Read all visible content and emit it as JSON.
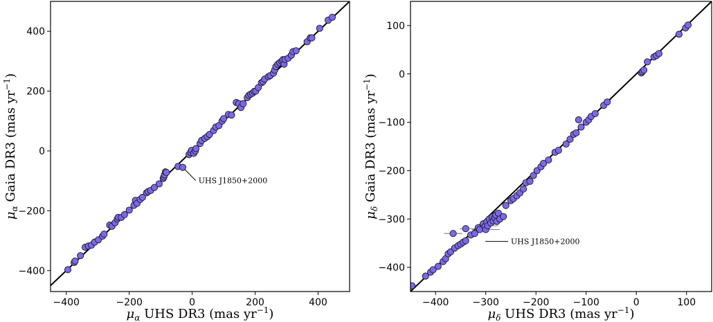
{
  "colors": {
    "marker": "#7b68ee",
    "edge": "#1a1a1a",
    "line": "#000000"
  },
  "chart_data": [
    {
      "type": "scatter",
      "id": "ra",
      "xlabel": {
        "sym": "μ",
        "sub": "α",
        "text": " UHS DR3 (mas yr",
        "sup": "−1",
        "end": ")"
      },
      "ylabel": {
        "sym": "μ",
        "sub": "α",
        "text": " Gaia DR3 (mas yr",
        "sup": "−1",
        "end": ")"
      },
      "xlim": [
        -450,
        500
      ],
      "ylim": [
        -470,
        500
      ],
      "xticks": [
        -400,
        -200,
        0,
        200,
        400
      ],
      "yticks": [
        -400,
        -200,
        0,
        200,
        400
      ],
      "xticklabels": [
        "−400",
        "−200",
        "0",
        "200",
        "400"
      ],
      "yticklabels": [
        "−400",
        "−200",
        "0",
        "200",
        "400"
      ],
      "line": {
        "x": [
          -450,
          500
        ],
        "y": [
          -450,
          500
        ]
      },
      "annotation": {
        "text": "UHS J1850+2000",
        "point": [
          -30,
          -55
        ],
        "text_at": [
          20,
          -108
        ]
      },
      "points": [
        [
          -395,
          -397
        ],
        [
          -375,
          -373
        ],
        [
          -372,
          -368
        ],
        [
          -355,
          -350
        ],
        [
          -340,
          -322
        ],
        [
          -330,
          -318
        ],
        [
          -320,
          -315
        ],
        [
          -310,
          -305
        ],
        [
          -298,
          -297
        ],
        [
          -285,
          -285
        ],
        [
          -280,
          -278
        ],
        [
          -262,
          -248
        ],
        [
          -255,
          -252
        ],
        [
          -245,
          -240
        ],
        [
          -238,
          -228
        ],
        [
          -235,
          -222
        ],
        [
          -225,
          -222
        ],
        [
          -215,
          -213
        ],
        [
          -200,
          -198
        ],
        [
          -185,
          -182
        ],
        [
          -180,
          -165
        ],
        [
          -175,
          -175
        ],
        [
          -165,
          -162
        ],
        [
          -158,
          -155
        ],
        [
          -145,
          -140
        ],
        [
          -140,
          -136
        ],
        [
          -132,
          -132
        ],
        [
          -120,
          -122
        ],
        [
          -105,
          -110
        ],
        [
          -92,
          -92
        ],
        [
          -90,
          -87
        ],
        [
          -88,
          -80
        ],
        [
          -85,
          -70
        ],
        [
          -82,
          -72
        ],
        [
          -45,
          -52
        ],
        [
          -30,
          -55
        ],
        [
          -10,
          -12
        ],
        [
          -5,
          -5
        ],
        [
          -2,
          2
        ],
        [
          5,
          -8
        ],
        [
          10,
          0
        ],
        [
          12,
          8
        ],
        [
          25,
          25
        ],
        [
          30,
          35
        ],
        [
          40,
          42
        ],
        [
          48,
          48
        ],
        [
          55,
          55
        ],
        [
          68,
          68
        ],
        [
          75,
          80
        ],
        [
          85,
          85
        ],
        [
          95,
          100
        ],
        [
          100,
          108
        ],
        [
          115,
          122
        ],
        [
          125,
          120
        ],
        [
          140,
          162
        ],
        [
          148,
          158
        ],
        [
          155,
          145
        ],
        [
          162,
          158
        ],
        [
          175,
          178
        ],
        [
          180,
          186
        ],
        [
          186,
          190
        ],
        [
          192,
          193
        ],
        [
          197,
          199
        ],
        [
          202,
          200
        ],
        [
          210,
          212
        ],
        [
          220,
          228
        ],
        [
          225,
          232
        ],
        [
          230,
          240
        ],
        [
          242,
          248
        ],
        [
          248,
          252
        ],
        [
          258,
          260
        ],
        [
          262,
          270
        ],
        [
          266,
          282
        ],
        [
          272,
          290
        ],
        [
          278,
          295
        ],
        [
          285,
          300
        ],
        [
          288,
          305
        ],
        [
          292,
          290
        ],
        [
          295,
          306
        ],
        [
          305,
          310
        ],
        [
          315,
          320
        ],
        [
          320,
          332
        ],
        [
          330,
          335
        ],
        [
          365,
          365
        ],
        [
          375,
          378
        ],
        [
          380,
          378
        ],
        [
          405,
          410
        ],
        [
          432,
          437
        ],
        [
          445,
          447
        ]
      ]
    },
    {
      "type": "scatter",
      "id": "dec",
      "xlabel": {
        "sym": "μ",
        "sub": "δ",
        "text": " UHS DR3 (mas yr",
        "sup": "−1",
        "end": ")"
      },
      "ylabel": {
        "sym": "μ",
        "sub": "δ",
        "text": " Gaia DR3 (mas yr",
        "sup": "−1",
        "end": ")"
      },
      "xlim": [
        -450,
        150
      ],
      "ylim": [
        -450,
        150
      ],
      "xticks": [
        -400,
        -300,
        -200,
        -100,
        0,
        100
      ],
      "yticks": [
        -400,
        -300,
        -200,
        -100,
        0,
        100
      ],
      "xticklabels": [
        "−400",
        "−300",
        "−200",
        "−100",
        "0",
        "100"
      ],
      "yticklabels": [
        "−400",
        "−300",
        "−200",
        "−100",
        "0",
        "100"
      ],
      "line": {
        "x": [
          -450,
          150
        ],
        "y": [
          -450,
          150
        ]
      },
      "annotation": {
        "text": "UHS J1850+2000",
        "point": [
          -305,
          -342
        ],
        "text_at": [
          -250,
          -352
        ]
      },
      "points": [
        [
          -447,
          -438
        ],
        [
          -420,
          -418
        ],
        [
          -410,
          -410
        ],
        [
          -405,
          -405
        ],
        [
          -395,
          -398
        ],
        [
          -385,
          -388
        ],
        [
          -380,
          -382
        ],
        [
          -375,
          -372
        ],
        [
          -370,
          -368
        ],
        [
          -362,
          -360
        ],
        [
          -355,
          -355
        ],
        [
          -350,
          -352
        ],
        [
          -345,
          -348
        ],
        [
          -340,
          -345
        ],
        [
          -365,
          -330
        ],
        [
          -340,
          -320
        ],
        [
          -330,
          -333
        ],
        [
          -322,
          -330
        ],
        [
          -315,
          -318
        ],
        [
          -312,
          -322
        ],
        [
          -305,
          -310
        ],
        [
          -302,
          -316
        ],
        [
          -300,
          -322
        ],
        [
          -298,
          -306
        ],
        [
          -296,
          -314
        ],
        [
          -293,
          -300
        ],
        [
          -290,
          -308
        ],
        [
          -287,
          -296
        ],
        [
          -285,
          -304
        ],
        [
          -282,
          -298
        ],
        [
          -280,
          -292
        ],
        [
          -278,
          -305
        ],
        [
          -275,
          -288
        ],
        [
          -272,
          -300
        ],
        [
          -265,
          -295
        ],
        [
          -260,
          -272
        ],
        [
          -250,
          -262
        ],
        [
          -245,
          -258
        ],
        [
          -238,
          -252
        ],
        [
          -232,
          -246
        ],
        [
          -225,
          -238
        ],
        [
          -220,
          -225
        ],
        [
          -212,
          -222
        ],
        [
          -205,
          -210
        ],
        [
          -198,
          -200
        ],
        [
          -190,
          -192
        ],
        [
          -185,
          -185
        ],
        [
          -175,
          -178
        ],
        [
          -162,
          -162
        ],
        [
          -155,
          -158
        ],
        [
          -140,
          -145
        ],
        [
          -132,
          -135
        ],
        [
          -125,
          -125
        ],
        [
          -120,
          -122
        ],
        [
          -115,
          -95
        ],
        [
          -110,
          -110
        ],
        [
          -100,
          -100
        ],
        [
          -95,
          -95
        ],
        [
          -90,
          -88
        ],
        [
          -82,
          -82
        ],
        [
          -65,
          -65
        ],
        [
          -58,
          -58
        ],
        [
          10,
          2
        ],
        [
          12,
          5
        ],
        [
          15,
          8
        ],
        [
          22,
          25
        ],
        [
          35,
          35
        ],
        [
          40,
          38
        ],
        [
          45,
          42
        ],
        [
          85,
          82
        ],
        [
          98,
          95
        ],
        [
          103,
          101
        ]
      ],
      "errorbars": [
        {
          "x": -365,
          "y": -330,
          "xerr": 18
        },
        {
          "x": -330,
          "y": -320,
          "xerr": 22
        },
        {
          "x": -300,
          "y": -322,
          "xerr": 28
        },
        {
          "x": -296,
          "y": -314,
          "xerr": 20
        }
      ]
    }
  ]
}
